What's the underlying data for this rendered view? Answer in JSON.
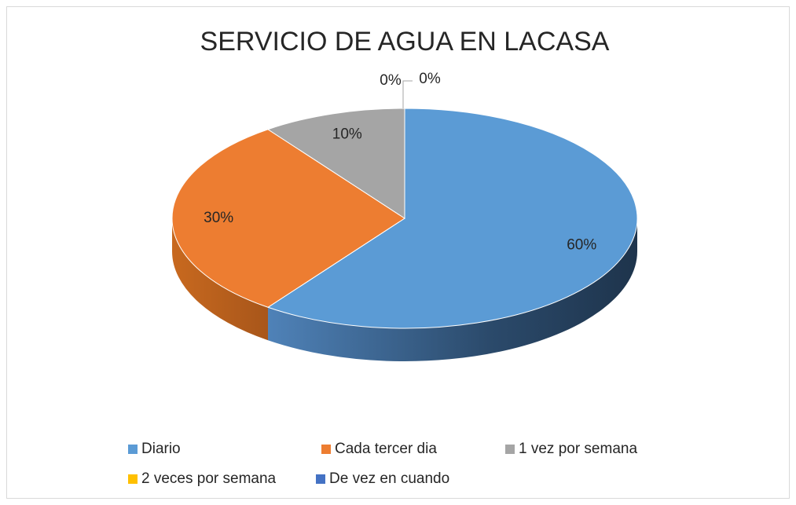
{
  "chart_data": {
    "type": "pie",
    "title": "SERVICIO DE AGUA EN LACASA",
    "categories": [
      "Diario",
      "Cada tercer dia",
      "1 vez por semana",
      "2 veces por semana",
      "De vez en cuando"
    ],
    "values": [
      60,
      30,
      10,
      0,
      0
    ],
    "value_labels": [
      "60%",
      "30%",
      "10%",
      "0%",
      "0%"
    ],
    "colors": [
      "#5b9bd5",
      "#ed7d31",
      "#a5a5a5",
      "#ffc000",
      "#4472c4"
    ],
    "legend": "bottom"
  }
}
